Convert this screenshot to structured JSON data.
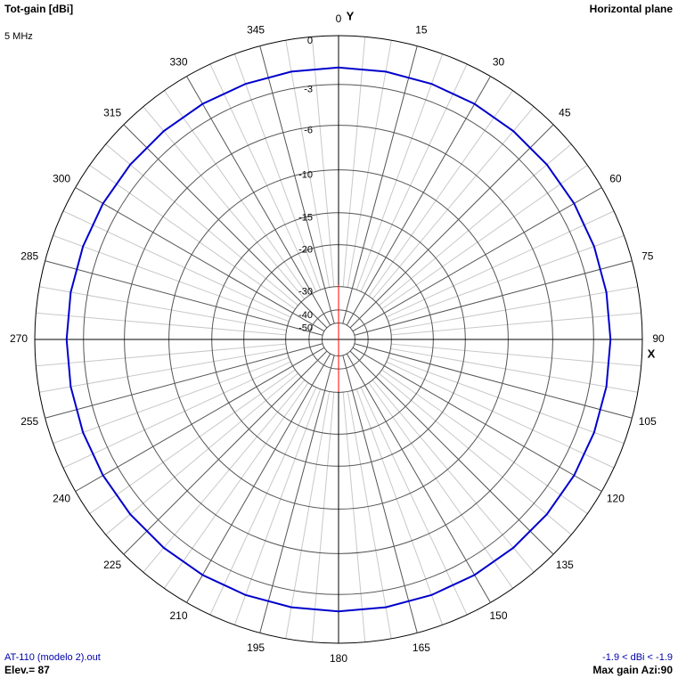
{
  "chart_data": {
    "type": "polar",
    "title": "Tot-gain [dBi]",
    "subtitle": "5 MHz",
    "plane_label": "Horizontal plane",
    "file_label": "AT-110 (modelo 2).out",
    "elevation_label": "Elev.= 87",
    "range_label": "-1.9 < dBi < -1.9",
    "max_gain_label": "Max gain Azi:90",
    "y_axis_label": "Y",
    "x_axis_label": "X",
    "scale": "arrl",
    "rlim": [
      -50,
      0
    ],
    "rticks": [
      0,
      -3,
      -6,
      -10,
      -15,
      -20,
      -30,
      -40,
      -50
    ],
    "angle_ticks": [
      0,
      15,
      30,
      45,
      60,
      75,
      90,
      105,
      120,
      135,
      150,
      165,
      180,
      195,
      210,
      225,
      240,
      255,
      270,
      285,
      300,
      315,
      330,
      345
    ],
    "series": [
      {
        "color": "#0000cc",
        "theta": [
          0,
          10,
          20,
          30,
          40,
          50,
          60,
          70,
          80,
          90,
          100,
          110,
          120,
          130,
          140,
          150,
          160,
          170,
          180,
          190,
          200,
          210,
          220,
          230,
          240,
          250,
          260,
          270,
          280,
          290,
          300,
          310,
          320,
          330,
          340,
          350
        ],
        "values": [
          -1.9,
          -1.9,
          -1.9,
          -1.9,
          -1.9,
          -1.9,
          -1.9,
          -1.9,
          -1.9,
          -1.9,
          -1.9,
          -1.9,
          -1.9,
          -1.9,
          -1.9,
          -1.9,
          -1.9,
          -1.9,
          -1.9,
          -1.9,
          -1.9,
          -1.9,
          -1.9,
          -1.9,
          -1.9,
          -1.9,
          -1.9,
          -1.9,
          -1.9,
          -1.9,
          -1.9,
          -1.9,
          -1.9,
          -1.9,
          -1.9,
          -1.9
        ]
      }
    ]
  }
}
